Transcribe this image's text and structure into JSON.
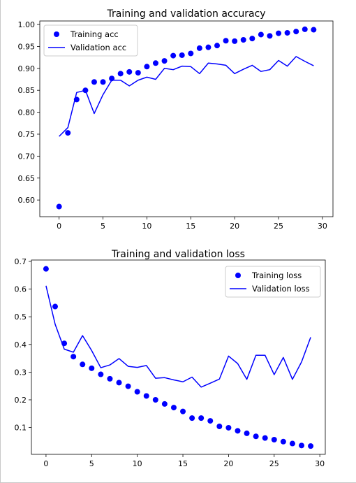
{
  "colors": {
    "series": "#0000ff",
    "axis": "#000000",
    "legend_border": "#cccccc"
  },
  "chart_data": [
    {
      "type": "line",
      "title": "Training and validation accuracy",
      "xlabel": "",
      "ylabel": "",
      "xlim": [
        -2.2,
        31.2
      ],
      "ylim": [
        0.562,
        1.008
      ],
      "xticks": [
        0,
        5,
        10,
        15,
        20,
        25,
        30
      ],
      "yticks": [
        0.6,
        0.65,
        0.7,
        0.75,
        0.8,
        0.85,
        0.9,
        0.95,
        1.0
      ],
      "ytick_decimals": 2,
      "grid": false,
      "legend": "top-left",
      "x": [
        0,
        1,
        2,
        3,
        4,
        5,
        6,
        7,
        8,
        9,
        10,
        11,
        12,
        13,
        14,
        15,
        16,
        17,
        18,
        19,
        20,
        21,
        22,
        23,
        24,
        25,
        26,
        27,
        28,
        29
      ],
      "series": [
        {
          "name": "Training acc",
          "style": "dots",
          "values": [
            0.585,
            0.753,
            0.829,
            0.85,
            0.869,
            0.869,
            0.877,
            0.888,
            0.892,
            0.89,
            0.904,
            0.912,
            0.917,
            0.929,
            0.93,
            0.934,
            0.946,
            0.948,
            0.952,
            0.963,
            0.962,
            0.965,
            0.968,
            0.977,
            0.974,
            0.98,
            0.981,
            0.984,
            0.989,
            0.988
          ]
        },
        {
          "name": "Validation acc",
          "style": "line",
          "values": [
            0.745,
            0.765,
            0.845,
            0.85,
            0.797,
            0.84,
            0.873,
            0.873,
            0.86,
            0.873,
            0.88,
            0.875,
            0.9,
            0.897,
            0.905,
            0.904,
            0.888,
            0.912,
            0.91,
            0.907,
            0.888,
            0.898,
            0.907,
            0.893,
            0.897,
            0.918,
            0.905,
            0.927,
            0.916,
            0.906
          ]
        }
      ]
    },
    {
      "type": "line",
      "title": "Training and validation loss",
      "xlabel": "",
      "ylabel": "",
      "xlim": [
        -1.6,
        30.6
      ],
      "ylim": [
        0.003,
        0.705
      ],
      "xticks": [
        0,
        5,
        10,
        15,
        20,
        25,
        30
      ],
      "yticks": [
        0.1,
        0.2,
        0.3,
        0.4,
        0.5,
        0.6,
        0.7
      ],
      "ytick_decimals": 1,
      "grid": false,
      "legend": "top-right",
      "x": [
        0,
        1,
        2,
        3,
        4,
        5,
        6,
        7,
        8,
        9,
        10,
        11,
        12,
        13,
        14,
        15,
        16,
        17,
        18,
        19,
        20,
        21,
        22,
        23,
        24,
        25,
        26,
        27,
        28,
        29
      ],
      "series": [
        {
          "name": "Training loss",
          "style": "dots",
          "values": [
            0.673,
            0.537,
            0.404,
            0.356,
            0.328,
            0.314,
            0.292,
            0.276,
            0.262,
            0.249,
            0.229,
            0.214,
            0.2,
            0.185,
            0.172,
            0.158,
            0.134,
            0.134,
            0.124,
            0.104,
            0.099,
            0.088,
            0.079,
            0.068,
            0.062,
            0.056,
            0.049,
            0.042,
            0.035,
            0.033
          ]
        },
        {
          "name": "Validation loss",
          "style": "line",
          "values": [
            0.612,
            0.473,
            0.383,
            0.372,
            0.432,
            0.378,
            0.316,
            0.326,
            0.349,
            0.321,
            0.317,
            0.324,
            0.278,
            0.28,
            0.272,
            0.265,
            0.282,
            0.246,
            0.26,
            0.275,
            0.358,
            0.331,
            0.274,
            0.361,
            0.361,
            0.291,
            0.353,
            0.274,
            0.337,
            0.426
          ]
        }
      ]
    }
  ]
}
